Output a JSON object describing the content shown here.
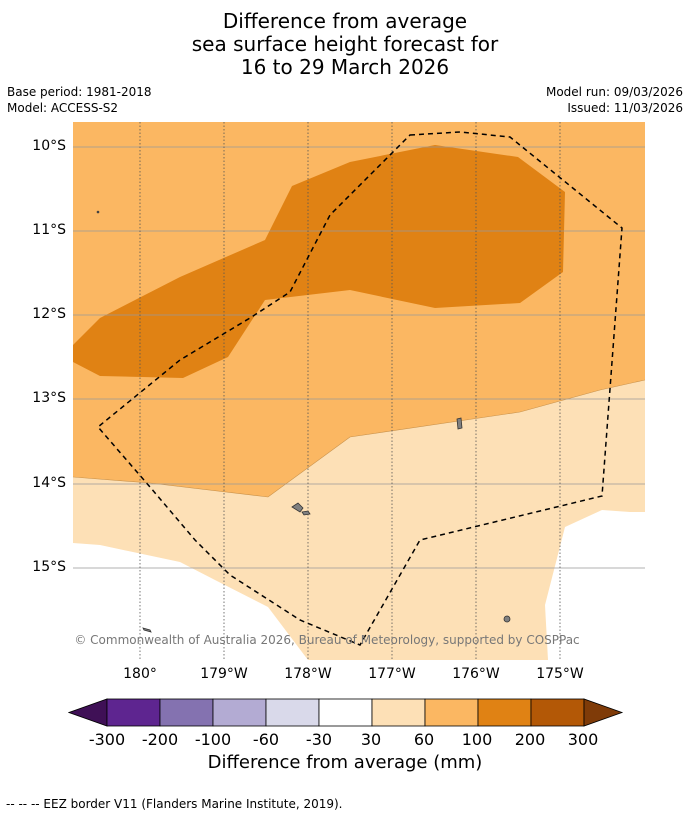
{
  "title": {
    "line1": "Difference from average",
    "line2": "sea surface height forecast for",
    "line3": "16 to 29 March 2026"
  },
  "meta": {
    "base_period": "Base period: 1981-2018",
    "model": "Model: ACCESS-S2",
    "model_run": "Model run: 09/03/2026",
    "issued": "Issued: 11/03/2026"
  },
  "axes": {
    "lat_labels": [
      "10°S",
      "11°S",
      "12°S",
      "13°S",
      "14°S",
      "15°S"
    ],
    "lon_labels": [
      "180°",
      "179°W",
      "178°W",
      "177°W",
      "176°W",
      "175°W"
    ]
  },
  "copyright": "© Commonwealth of Australia 2026, Bureau of Meteorology, supported by COSPPac",
  "legend": {
    "title": "Difference from average (mm)",
    "tick_labels": [
      "-300",
      "-200",
      "-100",
      "-60",
      "-30",
      "30",
      "60",
      "100",
      "200",
      "300"
    ],
    "colors": [
      "#3f1056",
      "#5e2590",
      "#8472b0",
      "#b3abd3",
      "#d9d9ea",
      "#ffffff",
      "#fde0b6",
      "#fbb762",
      "#e08214",
      "#b35806",
      "#7f3b08"
    ]
  },
  "footer": "--  --  -- EEZ border V11 (Flanders Marine Institute, 2019)."
}
